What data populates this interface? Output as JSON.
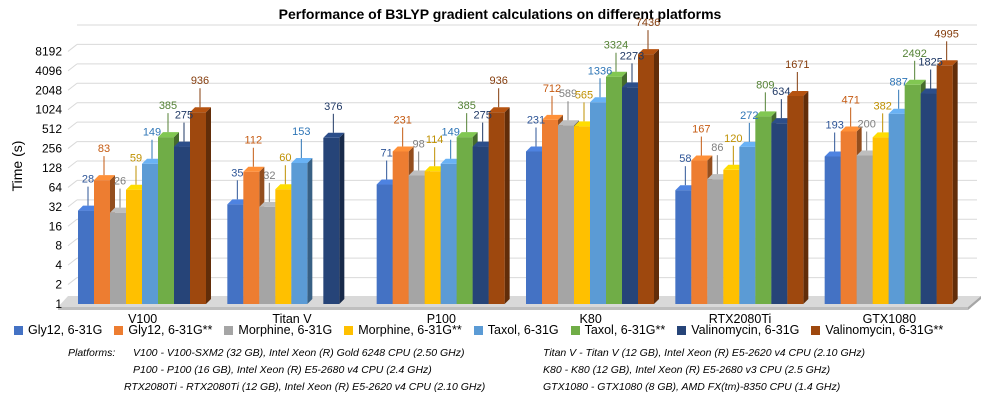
{
  "chart_data": {
    "type": "bar",
    "title": "Performance of B3LYP gradient calculations on different platforms",
    "ylabel": "Time (s)",
    "xlabel": "",
    "yscale": "log2",
    "ylim": [
      1,
      16384
    ],
    "yticks": [
      "1",
      "2",
      "4",
      "8",
      "16",
      "32",
      "64",
      "128",
      "256",
      "512",
      "1024",
      "2048",
      "4096",
      "8192"
    ],
    "grid": true,
    "legend_position": "bottom",
    "categories": [
      "V100",
      "Titan V",
      "P100",
      "K80",
      "RTX2080Ti",
      "GTX1080"
    ],
    "series": [
      {
        "name": "Gly12, 6-31G",
        "color": "#4472C4",
        "values": [
          28,
          35,
          71,
          231,
          58,
          193
        ],
        "labels": [
          "28",
          "35",
          "71",
          "231",
          "58",
          "193"
        ]
      },
      {
        "name": "Gly12, 6-31G**",
        "color": "#ED7D31",
        "values": [
          83,
          112,
          231,
          712,
          167,
          471
        ],
        "labels": [
          "83",
          "112",
          "231",
          "712",
          "167",
          "471"
        ]
      },
      {
        "name": "Morphine, 6-31G",
        "color": "#A5A5A5",
        "values": [
          26,
          32,
          98,
          589,
          86,
          200
        ],
        "labels": [
          "26",
          "32",
          "98",
          "589",
          "86",
          "200"
        ]
      },
      {
        "name": "Morphine, 6-31G**",
        "color": "#FFC000",
        "values": [
          59,
          60,
          114,
          565,
          120,
          382
        ],
        "labels": [
          "59",
          "60",
          "114",
          "565",
          "120",
          "382"
        ]
      },
      {
        "name": "Taxol, 6-31G",
        "color": "#5B9BD5",
        "values": [
          149,
          153,
          149,
          1336,
          272,
          887
        ],
        "labels": [
          "149",
          "153",
          "149",
          "1336",
          "272",
          "887"
        ]
      },
      {
        "name": "Taxol, 6-31G**",
        "color": "#70AD47",
        "values": [
          385,
          null,
          385,
          3324,
          809,
          2492
        ],
        "labels": [
          "385",
          "",
          "385",
          "3324",
          "809",
          "2492"
        ]
      },
      {
        "name": "Valinomycin, 6-31G",
        "color": "#264478",
        "values": [
          275,
          376,
          275,
          2273,
          634,
          1825
        ],
        "labels": [
          "275",
          "376",
          "275",
          "2273",
          "634",
          "1825"
        ]
      },
      {
        "name": "Valinomycin, 6-31G**",
        "color": "#9E480E",
        "values": [
          936,
          null,
          936,
          7436,
          1671,
          4995
        ],
        "labels": [
          "936",
          "",
          "936",
          "7436",
          "1671",
          "4995"
        ]
      }
    ]
  },
  "label_colors": [
    "#2E5597",
    "#C55A11",
    "#7F7F7F",
    "#BF9000",
    "#2E75B6",
    "#548235",
    "#1F3864",
    "#843C0C"
  ],
  "notes": {
    "lead": "Platforms:",
    "v100": "V100 - V100-SXM2 (32 GB), Intel Xeon (R) Gold 6248 CPU (2.50 GHz)",
    "titanv": "Titan V - Titan V (12 GB), Intel Xeon (R) E5-2620 v4 CPU (2.10 GHz)",
    "p100": "P100 - P100 (16 GB), Intel Xeon (R) E5-2680 v4 CPU (2.4 GHz)",
    "k80": "K80 - K80 (12 GB), Intel Xeon (R) E5-2680 v3 CPU (2.5 GHz)",
    "rtx": "RTX2080Ti - RTX2080Ti (12 GB), Intel Xeon (R) E5-2620 v4 CPU (2.10 GHz)",
    "gtx": "GTX1080 - GTX1080 (8 GB), AMD FX(tm)-8350 CPU (1.4 GHz)"
  }
}
